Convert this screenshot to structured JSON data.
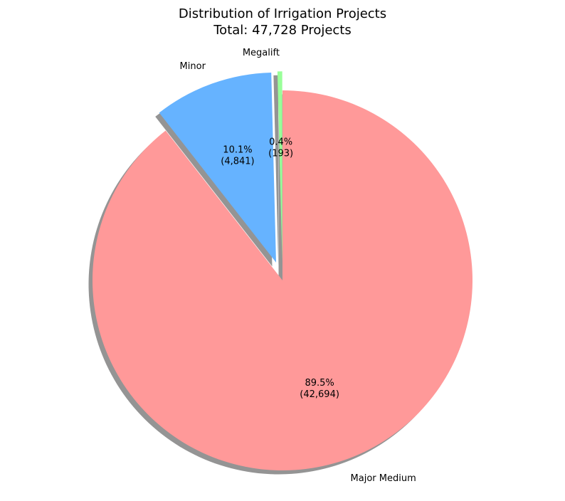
{
  "chart_data": {
    "type": "pie",
    "title": "Distribution of Irrigation Projects",
    "subtitle": "Total: 47,728 Projects",
    "slices": [
      {
        "label": "Major Medium",
        "value": 42694,
        "value_text": "(42,694)",
        "percent_text": "89.5%",
        "color": "#ff9999",
        "exploded": false
      },
      {
        "label": "Minor",
        "value": 4841,
        "value_text": "(4,841)",
        "percent_text": "10.1%",
        "color": "#66b3ff",
        "exploded": true
      },
      {
        "label": "Megalift",
        "value": 193,
        "value_text": "(193)",
        "percent_text": "0.4%",
        "color": "#99ff99",
        "exploded": true
      }
    ],
    "start_angle_deg": 90,
    "direction": "clockwise",
    "shadow": true,
    "legend": "none"
  }
}
